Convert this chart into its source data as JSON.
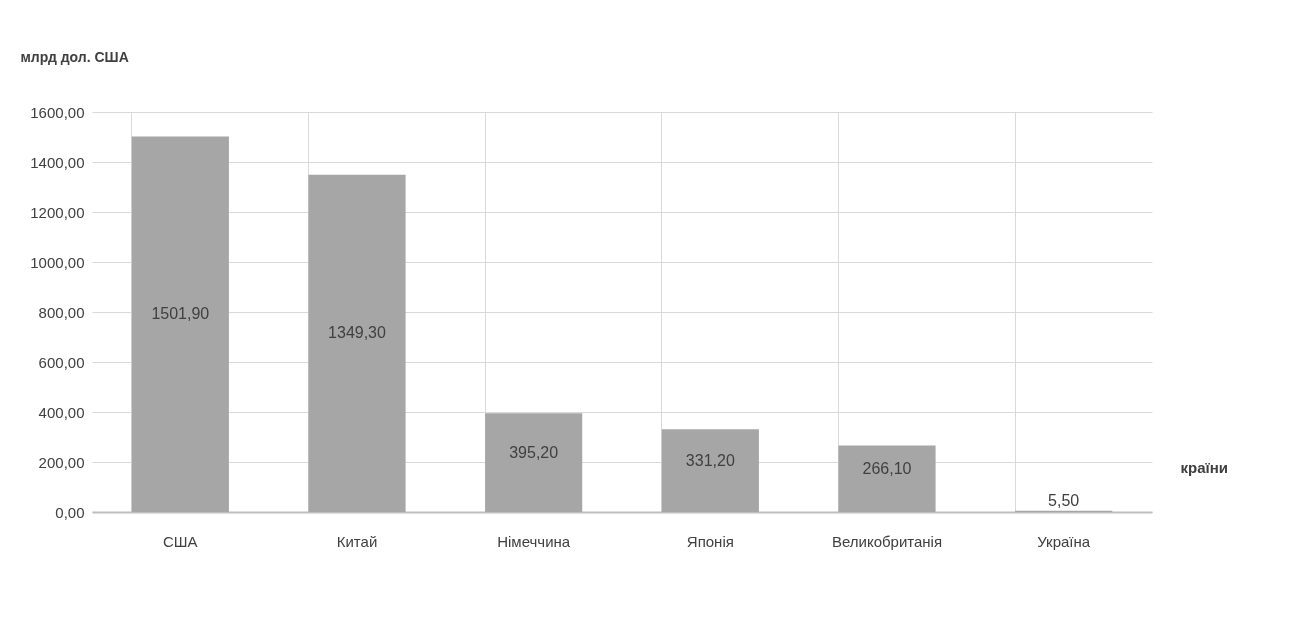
{
  "chart_data": {
    "type": "bar",
    "ylabel": "млрд дол. США",
    "xlabel": "країни",
    "categories": [
      "США",
      "Китай",
      "Німеччина",
      "Японія",
      "Великобританія",
      "Україна"
    ],
    "values": [
      1501.9,
      1349.3,
      395.2,
      331.2,
      266.1,
      5.5
    ],
    "value_labels": [
      "1501,90",
      "1349,30",
      "395,20",
      "331,20",
      "266,10",
      "5,50"
    ],
    "color": "#a6a6a6",
    "ylim": [
      0,
      1600
    ],
    "yticks": [
      {
        "value": 0,
        "label": "0,00"
      },
      {
        "value": 200,
        "label": "200,00"
      },
      {
        "value": 400,
        "label": "400,00"
      },
      {
        "value": 600,
        "label": "600,00"
      },
      {
        "value": 800,
        "label": "800,00"
      },
      {
        "value": 1000,
        "label": "1000,00"
      },
      {
        "value": 1200,
        "label": "1200,00"
      },
      {
        "value": 1400,
        "label": "1400,00"
      },
      {
        "value": 1600,
        "label": "1600,00"
      }
    ],
    "grid": true
  }
}
